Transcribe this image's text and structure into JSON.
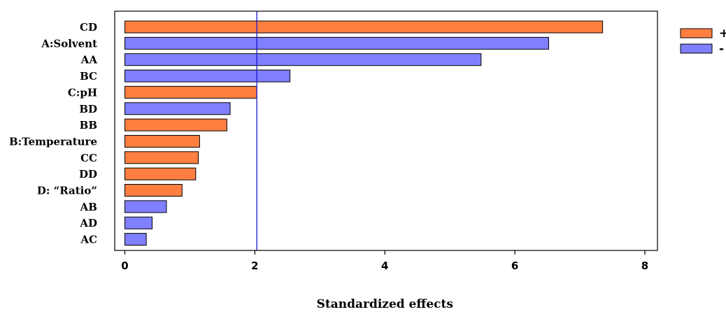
{
  "chart_data": {
    "type": "bar",
    "orientation": "horizontal",
    "categories": [
      "CD",
      "A:Solvent",
      "AA",
      "BC",
      "C:pH",
      "BD",
      "BB",
      "B:Temperature",
      "CC",
      "DD",
      "D: “Ratio”",
      "AB",
      "AD",
      "AC"
    ],
    "values": [
      7.35,
      6.52,
      5.48,
      2.54,
      2.03,
      1.62,
      1.57,
      1.15,
      1.13,
      1.09,
      0.88,
      0.64,
      0.42,
      0.33
    ],
    "signs": [
      "+",
      "-",
      "-",
      "-",
      "+",
      "-",
      "+",
      "+",
      "+",
      "+",
      "+",
      "-",
      "-",
      "-"
    ],
    "xlabel": "Standardized effects",
    "ylabel": "",
    "xlim": [
      0,
      8
    ],
    "xticks": [
      0,
      2,
      4,
      6,
      8
    ],
    "reference_line": 2.03,
    "grid": false,
    "legend": {
      "placement": "top-right",
      "entries": [
        {
          "label": "+",
          "color": "#FF7F40"
        },
        {
          "label": "-",
          "color": "#7F7FFF"
        }
      ]
    },
    "colors": {
      "positive": "#FF7F40",
      "negative": "#7F7FFF",
      "reference_line": "#1a1acc"
    }
  }
}
